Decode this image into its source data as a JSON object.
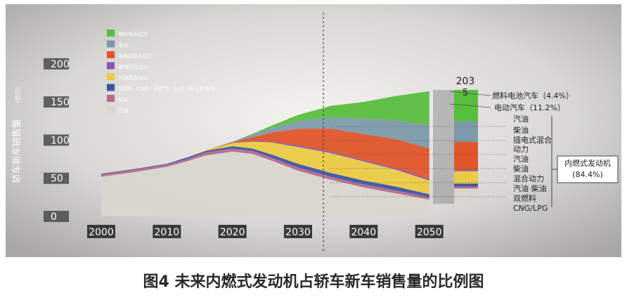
{
  "caption": "图4 未来内燃式发动机占轿车新车销售量的比例图",
  "chart_data": {
    "type": "area",
    "title": "",
    "ylabel": "轿车新车销售量",
    "yunit": "(百万)",
    "ylim": [
      0,
      210
    ],
    "xlim": [
      1997,
      2051
    ],
    "yticks": [
      "200",
      "150",
      "100",
      "50",
      "0"
    ],
    "xticks": [
      "2000",
      "2010",
      "2020",
      "2030",
      "2040",
      "2050"
    ],
    "x": [
      2000,
      2005,
      2010,
      2013,
      2016,
      2020,
      2023,
      2026,
      2030,
      2035,
      2040,
      2045,
      2050
    ],
    "series": [
      {
        "name": "汽油",
        "color": "#d9d6d0",
        "values": [
          52,
          58,
          65,
          72,
          80,
          85,
          82,
          73,
          60,
          48,
          38,
          30,
          22
        ]
      },
      {
        "name": "柴油",
        "color": "#b56a8a",
        "values": [
          3,
          3,
          3,
          3,
          4,
          4,
          4,
          4,
          4,
          4,
          4,
          4,
          3
        ]
      },
      {
        "name": "双燃料（CNG / 天然气）/LPG（液化石油气）",
        "color": "#3b55a6",
        "values": [
          1,
          1,
          1,
          2,
          2,
          3,
          3,
          4,
          5,
          5,
          5,
          5,
          4
        ]
      },
      {
        "name": "汽油混合动力",
        "color": "#eacb45",
        "values": [
          0,
          0,
          0,
          0,
          1,
          4,
          9,
          16,
          22,
          26,
          25,
          22,
          18
        ]
      },
      {
        "name": "柴油混合动力",
        "color": "#8a55ad",
        "values": [
          0,
          0,
          0,
          0,
          0,
          0,
          1,
          1,
          2,
          2,
          2,
          2,
          2
        ]
      },
      {
        "name": "插电式混合动力",
        "color": "#e0552a",
        "values": [
          0,
          0,
          0,
          0,
          0,
          1,
          5,
          12,
          22,
          30,
          34,
          38,
          40
        ]
      },
      {
        "name": "电动",
        "color": "#7d9aaa",
        "values": [
          0,
          0,
          0,
          0,
          0,
          1,
          3,
          6,
          10,
          15,
          20,
          25,
          30
        ]
      },
      {
        "name": "燃料电池动力",
        "color": "#58be3e",
        "values": [
          0,
          0,
          0,
          0,
          0,
          0,
          1,
          3,
          8,
          15,
          22,
          32,
          45
        ]
      }
    ],
    "legend": {
      "position": "top-left"
    },
    "annotations": {
      "total_2050": "203",
      "total_2050_sub": "5",
      "fuel_cell": "燃料电池汽车（4.4%）",
      "electric": "电动汽车（11.2%）",
      "ice_list": [
        "汽油",
        "柴油",
        "插电式混合",
        "动力",
        "汽油",
        "柴油",
        "混合动力",
        "汽油  柴油",
        "双燃料",
        "CNG/LPG"
      ],
      "ice_total": "内燃式发动机",
      "ice_pct": "(84.4%)"
    }
  }
}
